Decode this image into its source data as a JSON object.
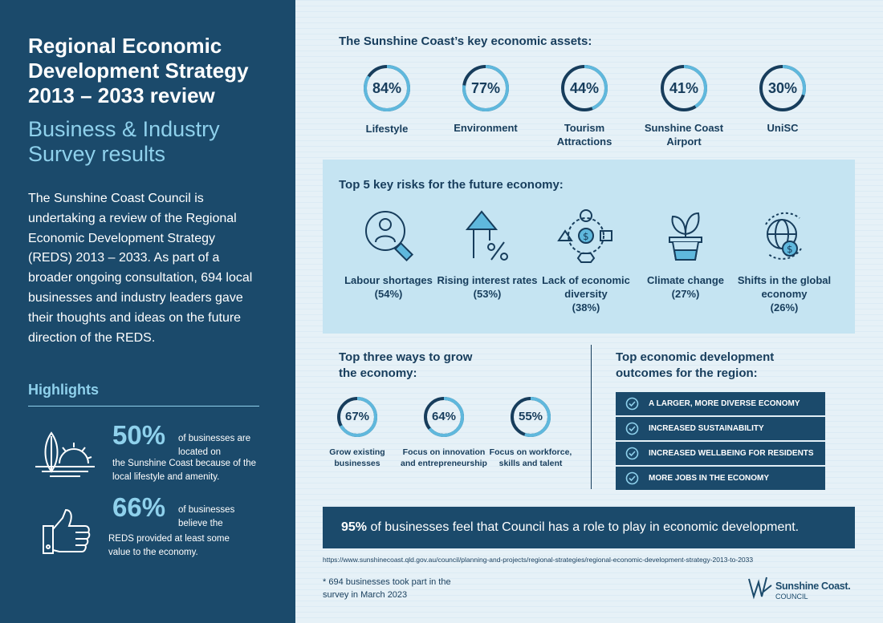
{
  "left": {
    "title": "Regional Economic Development Strategy 2013 – 2033 review",
    "subtitle": "Business & Industry Survey results",
    "intro": "The Sunshine Coast Council is undertaking a review of the Regional Economic Development Strategy (REDS) 2013 – 2033. As part of a broader ongoing consultation, 694 local businesses and industry leaders gave their thoughts and ideas on the future direction of the REDS.",
    "highlights_title": "Highlights",
    "stat1": {
      "value": "50%",
      "text_a": "of businesses are located on",
      "text_b": "the Sunshine Coast because of the local lifestyle and amenity."
    },
    "stat2": {
      "value": "66%",
      "text_a": "of businesses believe the",
      "text_b": "REDS provided at least some value to the economy."
    }
  },
  "assets": {
    "heading": "The Sunshine Coast’s key economic assets:",
    "items": [
      {
        "value": "84%",
        "pct": 84,
        "label": "Lifestyle"
      },
      {
        "value": "77%",
        "pct": 77,
        "label": "Environment"
      },
      {
        "value": "44%",
        "pct": 44,
        "label": "Tourism Attractions"
      },
      {
        "value": "41%",
        "pct": 41,
        "label": "Sunshine Coast Airport"
      },
      {
        "value": "30%",
        "pct": 30,
        "label": "UniSC"
      }
    ]
  },
  "risks": {
    "heading": "Top 5 key risks for the future economy:",
    "items": [
      {
        "label": "Labour shortages",
        "value": "(54%)",
        "icon": "worker-search-icon"
      },
      {
        "label": "Rising interest rates",
        "value": "(53%)",
        "icon": "rising-rate-icon"
      },
      {
        "label": "Lack of economic diversity",
        "value": "(38%)",
        "icon": "diversity-icon"
      },
      {
        "label": "Climate change",
        "value": "(27%)",
        "icon": "plant-pot-icon"
      },
      {
        "label": "Shifts in the global economy",
        "value": "(26%)",
        "icon": "globe-dollar-icon"
      }
    ]
  },
  "grow": {
    "heading": "Top three ways to grow the economy:",
    "items": [
      {
        "value": "67%",
        "pct": 67,
        "label": "Grow existing businesses"
      },
      {
        "value": "64%",
        "pct": 64,
        "label": "Focus on innovation and entrepreneurship"
      },
      {
        "value": "55%",
        "pct": 55,
        "label": "Focus on workforce, skills and talent"
      }
    ]
  },
  "outcomes": {
    "heading": "Top economic development outcomes for the region:",
    "items": [
      "A LARGER, MORE DIVERSE ECONOMY",
      "INCREASED SUSTAINABILITY",
      "INCREASED WELLBEING FOR RESIDENTS",
      "MORE JOBS IN THE ECONOMY"
    ]
  },
  "banner": {
    "value": "95%",
    "text": "of businesses feel that Council has a role to play in economic development."
  },
  "url": "https://www.sunshinecoast.qld.gov.au/council/planning-and-projects/regional-strategies/regional-economic-development-strategy-2013-to-2033",
  "footnote": "* 694 businesses took part in the survey in March 2023",
  "logo": {
    "name": "Sunshine Coast.",
    "sub": "COUNCIL"
  },
  "colors": {
    "navy": "#1b4a6b",
    "accent": "#8fd1ec",
    "ring": "#5fb8dd"
  }
}
